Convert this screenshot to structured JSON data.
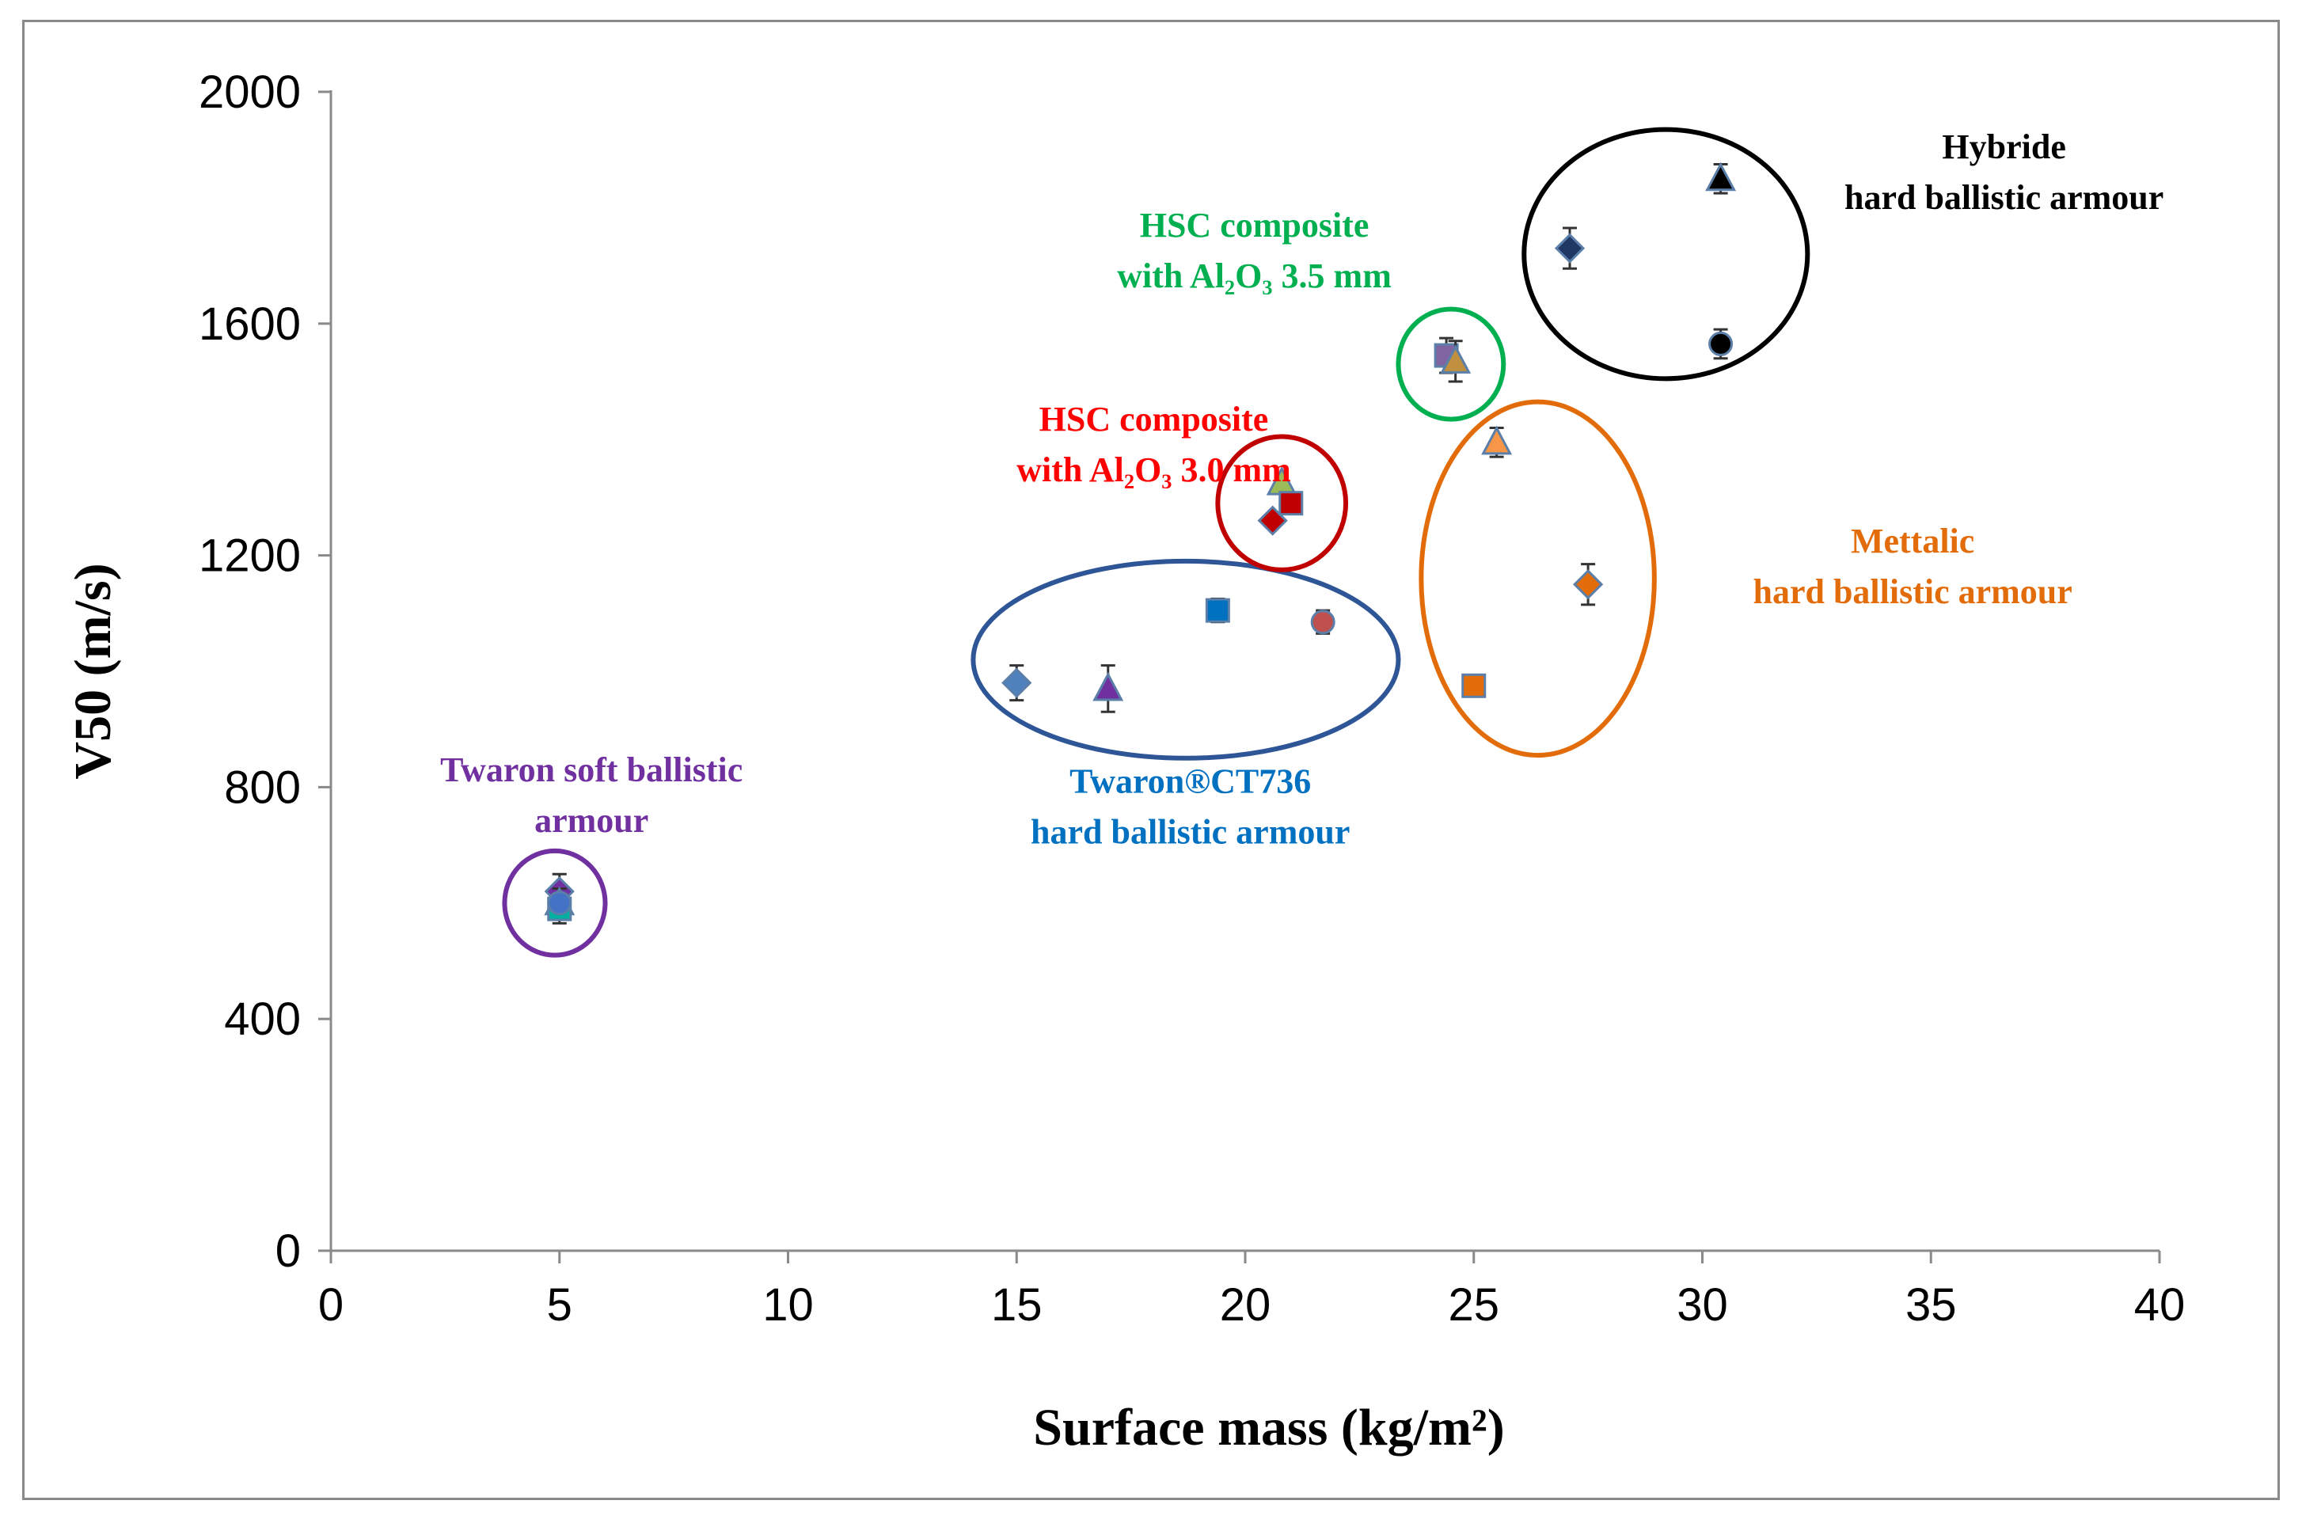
{
  "chart_data": {
    "type": "scatter",
    "title": "",
    "xlabel": "Surface mass (kg/m²)",
    "ylabel": "V50 (m/s)",
    "xlim": [
      0,
      40
    ],
    "ylim": [
      0,
      2000
    ],
    "xticks": [
      0,
      5,
      10,
      15,
      20,
      25,
      30,
      35,
      40
    ],
    "yticks": [
      0,
      400,
      800,
      1200,
      1600,
      2000
    ],
    "grid": false,
    "legend": "none",
    "series": [
      {
        "name": "Twaron soft ballistic armour",
        "points": [
          {
            "x": 5.0,
            "y": 620,
            "err": 30,
            "marker": "diamond",
            "fill": "#7030a0"
          },
          {
            "x": 5.0,
            "y": 600,
            "err": 25,
            "marker": "triangle",
            "fill": "#ed7d31"
          },
          {
            "x": 5.0,
            "y": 590,
            "err": 25,
            "marker": "square",
            "fill": "#00b0a0"
          },
          {
            "x": 5.0,
            "y": 600,
            "err": 0,
            "marker": "circle",
            "fill": "#4472c4"
          }
        ]
      },
      {
        "name": "Twaron CT736 hard ballistic armour",
        "points": [
          {
            "x": 15.0,
            "y": 980,
            "err": 30,
            "marker": "diamond",
            "fill": "#4f81bd"
          },
          {
            "x": 17.0,
            "y": 970,
            "err": 40,
            "marker": "triangle",
            "fill": "#7030a0"
          },
          {
            "x": 19.4,
            "y": 1105,
            "err": 20,
            "marker": "square",
            "fill": "#0070c0"
          },
          {
            "x": 21.7,
            "y": 1085,
            "err": 20,
            "marker": "circle",
            "fill": "#c0504d"
          }
        ]
      },
      {
        "name": "HSC composite with Al2O3 3.0 mm",
        "points": [
          {
            "x": 20.6,
            "y": 1260,
            "err": 0,
            "marker": "diamond",
            "fill": "#c00000"
          },
          {
            "x": 20.8,
            "y": 1325,
            "err": 0,
            "marker": "triangle",
            "fill": "#9bbb59"
          },
          {
            "x": 21.0,
            "y": 1290,
            "err": 0,
            "marker": "square",
            "fill": "#c00000"
          }
        ]
      },
      {
        "name": "HSC composite with Al2O3 3.5 mm",
        "points": [
          {
            "x": 24.4,
            "y": 1545,
            "err": 30,
            "marker": "square",
            "fill": "#8064a2"
          },
          {
            "x": 24.6,
            "y": 1535,
            "err": 35,
            "marker": "triangle",
            "fill": "#c09040"
          }
        ]
      },
      {
        "name": "Mettalic hard ballistic armour",
        "points": [
          {
            "x": 25.0,
            "y": 975,
            "err": 15,
            "marker": "square",
            "fill": "#e36c0a"
          },
          {
            "x": 25.5,
            "y": 1395,
            "err": 25,
            "marker": "triangle",
            "fill": "#f79646"
          },
          {
            "x": 27.5,
            "y": 1150,
            "err": 35,
            "marker": "diamond",
            "fill": "#e36c0a"
          }
        ]
      },
      {
        "name": "Hybride hard ballistic armour",
        "points": [
          {
            "x": 27.1,
            "y": 1730,
            "err": 35,
            "marker": "diamond",
            "fill": "#1f3864"
          },
          {
            "x": 30.4,
            "y": 1850,
            "err": 25,
            "marker": "triangle",
            "fill": "#000000"
          },
          {
            "x": 30.4,
            "y": 1565,
            "err": 25,
            "marker": "circle",
            "fill": "#000000"
          }
        ]
      }
    ],
    "annotations": [
      {
        "lines": [
          "Twaron  soft ballistic",
          "armour"
        ],
        "color": "#7030a0",
        "x": 5.7,
        "y": 810
      },
      {
        "lines": [
          "Twaron®CT736",
          "hard ballistic armour"
        ],
        "color": "#0070c0",
        "x": 18.8,
        "y": 790
      },
      {
        "lines": [
          "HSC composite",
          "with Al₂O₃ 3.0 mm"
        ],
        "color": "#ff0000",
        "x": 18.0,
        "y": 1415
      },
      {
        "lines": [
          "HSC composite",
          "with Al₂O₃ 3.5 mm"
        ],
        "color": "#00b050",
        "x": 20.2,
        "y": 1750
      },
      {
        "lines": [
          "Mettalic",
          "hard ballistic armour"
        ],
        "color": "#e36c0a",
        "x": 34.6,
        "y": 1205
      },
      {
        "lines": [
          "Hybride",
          "hard ballistic armour"
        ],
        "color": "#000000",
        "x": 36.6,
        "y": 1885
      }
    ],
    "groups": [
      {
        "name": "twaron-soft",
        "cx": 4.9,
        "cy": 600,
        "rx": 1.1,
        "ry": 90,
        "color": "#7030a0"
      },
      {
        "name": "twaron-ct736",
        "cx": 18.7,
        "cy": 1020,
        "rx": 4.65,
        "ry": 170,
        "color": "#2e5596"
      },
      {
        "name": "hsc-3.0",
        "cx": 20.8,
        "cy": 1290,
        "rx": 1.4,
        "ry": 115,
        "color": "#c00000"
      },
      {
        "name": "hsc-3.5",
        "cx": 24.5,
        "cy": 1530,
        "rx": 1.15,
        "ry": 95,
        "color": "#00b050"
      },
      {
        "name": "mettalic",
        "cx": 26.4,
        "cy": 1160,
        "rx": 2.55,
        "ry": 305,
        "color": "#e36c0a"
      },
      {
        "name": "hybride",
        "cx": 29.2,
        "cy": 1720,
        "rx": 3.1,
        "ry": 215,
        "color": "#000000"
      }
    ]
  }
}
